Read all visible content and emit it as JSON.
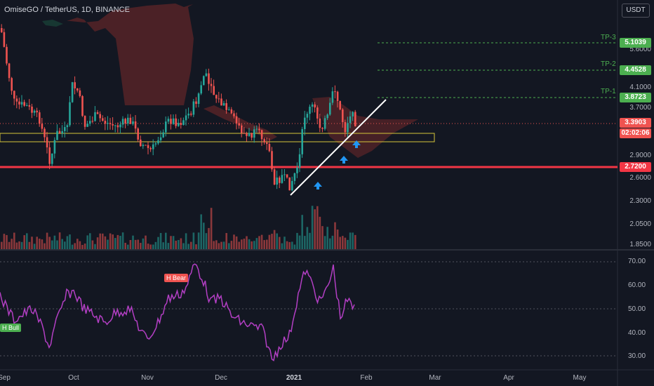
{
  "header": {
    "symbol_title": "OmiseGO / TetherUS, 1D, BINANCE",
    "currency_button": "USDT"
  },
  "price_axis": {
    "ticks": [
      "5.6000",
      "4.1000",
      "3.7000",
      "2.9000",
      "2.6000",
      "2.3000",
      "2.0500",
      "1.8500"
    ]
  },
  "price_badges": {
    "tp3": "5.1039",
    "tp2": "4.4528",
    "tp1": "3.8723",
    "current": "3.3903",
    "countdown": "02:02:06",
    "support": "2.7200"
  },
  "targets": {
    "tp3": "TP-3",
    "tp2": "TP-2",
    "tp1": "TP-1"
  },
  "rsi_panel": {
    "ticks": [
      "70.00",
      "60.00",
      "50.00",
      "40.00",
      "30.00"
    ],
    "tag_bear": "H Bear",
    "tag_bull": "H Bull"
  },
  "time_axis": {
    "labels": [
      "Sep",
      "Oct",
      "Nov",
      "Dec",
      "2021",
      "Feb",
      "Mar",
      "Apr",
      "May"
    ]
  },
  "colors": {
    "background": "#131722",
    "bull": "#26a69a",
    "bear": "#ef5350",
    "cloud_bear": "#7a2a2a",
    "rsi_line": "#b33fc4",
    "support_line": "#f23645",
    "target_green": "#4caf50",
    "arrow": "#2196f3",
    "trendline": "#ffffff",
    "box_outline": "#d4c63a"
  },
  "icons": {
    "signal_arrow": "arrow-up-icon"
  }
}
